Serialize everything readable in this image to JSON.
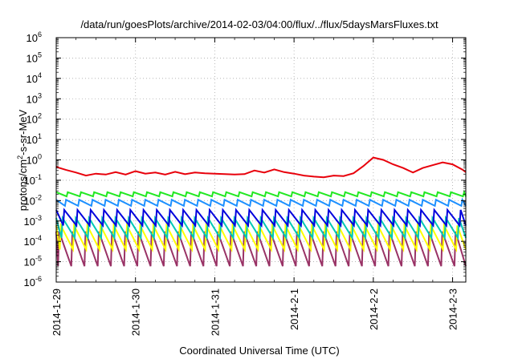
{
  "chart_data": {
    "type": "line",
    "title": "/data/run/goesPlots/archive/2014-02-03/04:00/flux/../flux/5daysMarsFluxes.txt",
    "xlabel": "Coordinated Universal Time (UTC)",
    "ylabel": {
      "base": "protons/cm",
      "sup": "2",
      "rest": "-s-sr-MeV"
    },
    "yscale": "log",
    "ylim": [
      1e-06,
      1000000.0
    ],
    "xlim": [
      "2014-01-29 00:00",
      "2014-02-03 04:00"
    ],
    "grid": true,
    "legend": "none",
    "x_ticks": [
      "2014-1-29",
      "2014-1-30",
      "2014-1-31",
      "2014-2-1",
      "2014-2-2",
      "2014-2-3"
    ],
    "y_ticks": [
      {
        "value": 1e-06,
        "base": "10",
        "exp": "-6"
      },
      {
        "value": 1e-05,
        "base": "10",
        "exp": "-5"
      },
      {
        "value": 0.0001,
        "base": "10",
        "exp": "-4"
      },
      {
        "value": 0.001,
        "base": "10",
        "exp": "-3"
      },
      {
        "value": 0.01,
        "base": "10",
        "exp": "-2"
      },
      {
        "value": 0.1,
        "base": "10",
        "exp": "-1"
      },
      {
        "value": 1.0,
        "base": "10",
        "exp": "0"
      },
      {
        "value": 10.0,
        "base": "10",
        "exp": "1"
      },
      {
        "value": 100.0,
        "base": "10",
        "exp": "2"
      },
      {
        "value": 1000.0,
        "base": "10",
        "exp": "3"
      },
      {
        "value": 10000.0,
        "base": "10",
        "exp": "4"
      },
      {
        "value": 100000.0,
        "base": "10",
        "exp": "5"
      },
      {
        "value": 1000000.0,
        "base": "10",
        "exp": "6"
      }
    ],
    "series": [
      {
        "color": "#e8000b",
        "x": [
          "2014-01-29 00:00",
          "2014-01-29 03:00",
          "2014-01-29 06:00",
          "2014-01-29 09:00",
          "2014-01-29 12:00",
          "2014-01-29 15:00",
          "2014-01-29 18:00",
          "2014-01-29 21:00",
          "2014-01-30 00:00",
          "2014-01-30 03:00",
          "2014-01-30 06:00",
          "2014-01-30 09:00",
          "2014-01-30 12:00",
          "2014-01-30 15:00",
          "2014-01-30 18:00",
          "2014-01-30 21:00",
          "2014-01-31 00:00",
          "2014-01-31 03:00",
          "2014-01-31 06:00",
          "2014-01-31 09:00",
          "2014-01-31 12:00",
          "2014-01-31 15:00",
          "2014-01-31 18:00",
          "2014-01-31 21:00",
          "2014-02-01 00:00",
          "2014-02-01 03:00",
          "2014-02-01 06:00",
          "2014-02-01 09:00",
          "2014-02-01 12:00",
          "2014-02-01 15:00",
          "2014-02-01 18:00",
          "2014-02-01 21:00",
          "2014-02-02 00:00",
          "2014-02-02 03:00",
          "2014-02-02 06:00",
          "2014-02-02 09:00",
          "2014-02-02 12:00",
          "2014-02-02 15:00",
          "2014-02-02 18:00",
          "2014-02-02 21:00",
          "2014-02-03 00:00",
          "2014-02-03 03:00",
          "2014-02-03 04:00"
        ],
        "y": [
          0.45,
          0.32,
          0.24,
          0.17,
          0.21,
          0.19,
          0.25,
          0.19,
          0.28,
          0.21,
          0.24,
          0.19,
          0.26,
          0.2,
          0.24,
          0.22,
          0.21,
          0.2,
          0.19,
          0.2,
          0.3,
          0.24,
          0.34,
          0.25,
          0.21,
          0.17,
          0.15,
          0.14,
          0.17,
          0.16,
          0.22,
          0.5,
          1.3,
          1.0,
          0.6,
          0.4,
          0.24,
          0.4,
          0.55,
          0.75,
          0.6,
          0.33,
          0.25
        ]
      },
      {
        "color": "#22e822",
        "x": [
          "2014-01-29 00:00",
          "2014-02-03 04:00"
        ],
        "y": [
          0.02,
          0.02
        ],
        "sawtooth": {
          "hi": 0.026,
          "lo": 0.016,
          "period_hours": 4
        }
      },
      {
        "color": "#1e90ff",
        "x": [
          "2014-01-29 00:00",
          "2014-02-03 04:00"
        ],
        "y": [
          0.008,
          0.008
        ],
        "sawtooth": {
          "hi": 0.011,
          "lo": 0.0055,
          "period_hours": 4
        }
      },
      {
        "color": "#0000dd",
        "x": [
          "2014-01-29 00:00",
          "2014-02-03 04:00"
        ],
        "y": [
          0.0015,
          0.0015
        ],
        "sawtooth": {
          "hi": 0.0035,
          "lo": 0.0006,
          "period_hours": 4
        }
      },
      {
        "color": "#00c8b4",
        "x": [
          "2014-01-29 00:00",
          "2014-02-03 04:00"
        ],
        "y": [
          0.0006,
          0.0006
        ],
        "sawtooth": {
          "hi": 0.0014,
          "lo": 0.00015,
          "period_hours": 4
        }
      },
      {
        "color": "#ffff00",
        "x": [
          "2014-01-29 00:00",
          "2014-02-03 04:00"
        ],
        "y": [
          0.0002,
          0.0002
        ],
        "sawtooth": {
          "hi": 0.0006,
          "lo": 4e-05,
          "period_hours": 4
        }
      },
      {
        "color": "#993366",
        "x": [
          "2014-01-29 00:00",
          "2014-02-03 04:00"
        ],
        "y": [
          5e-05,
          5e-05
        ],
        "sawtooth": {
          "hi": 0.0003,
          "lo": 6e-06,
          "period_hours": 4
        }
      }
    ]
  }
}
